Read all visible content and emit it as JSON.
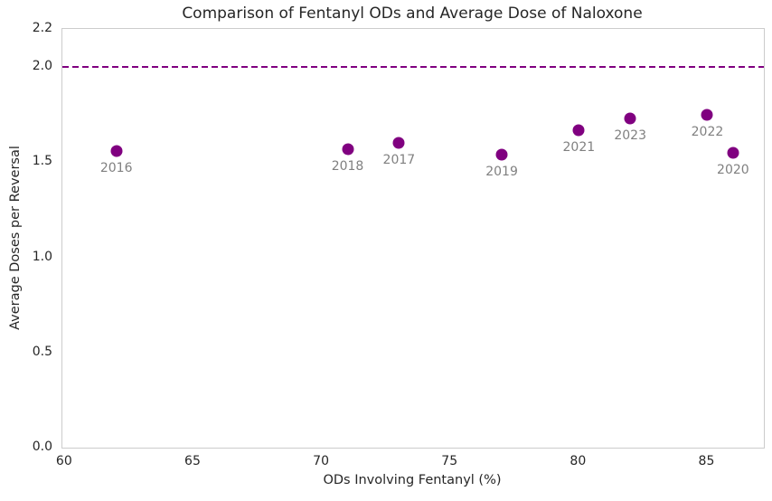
{
  "chart_data": {
    "type": "scatter",
    "title": "Comparison of Fentanyl ODs and Average Dose of Naloxone",
    "xlabel": "ODs Involving Fentanyl (%)",
    "ylabel": "Average Doses per Reversal",
    "xlim": [
      59.9,
      87.2
    ],
    "ylim": [
      0,
      2.2
    ],
    "x_ticks": [
      60,
      65,
      70,
      75,
      80,
      85
    ],
    "y_ticks": [
      0.0,
      0.5,
      1.0,
      1.5,
      2.0,
      2.2
    ],
    "grid": false,
    "legend_position": "none",
    "points": [
      {
        "year": "2016",
        "x": 62,
        "y": 1.56
      },
      {
        "year": "2017",
        "x": 73,
        "y": 1.6
      },
      {
        "year": "2018",
        "x": 71,
        "y": 1.57
      },
      {
        "year": "2019",
        "x": 77,
        "y": 1.54
      },
      {
        "year": "2020",
        "x": 86,
        "y": 1.55
      },
      {
        "year": "2021",
        "x": 80,
        "y": 1.67
      },
      {
        "year": "2022",
        "x": 85,
        "y": 1.75
      },
      {
        "year": "2023",
        "x": 82,
        "y": 1.73
      }
    ],
    "reference_line": {
      "y": 2.0,
      "style": "dashed"
    },
    "colors": {
      "point": "#800080",
      "reference_line": "#800080",
      "annotation": "#808080",
      "text": "#262626",
      "spine": "#cccccc"
    }
  }
}
